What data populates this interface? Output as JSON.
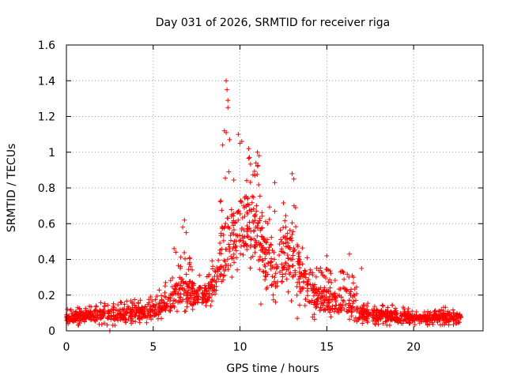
{
  "chart_data": {
    "type": "scatter",
    "title": "Day 031 of 2026, SRMTID for receiver riga",
    "xlabel": "GPS time / hours",
    "ylabel": "SRMTID / TECUs",
    "xlim": [
      0,
      24
    ],
    "ylim": [
      0,
      1.6
    ],
    "xticks": [
      0,
      5,
      10,
      15,
      20
    ],
    "xtick_labels": [
      "0",
      "5",
      "10",
      "15",
      "20"
    ],
    "yticks": [
      0,
      0.2,
      0.4,
      0.6,
      0.8,
      1,
      1.2,
      1.4,
      1.6
    ],
    "ytick_labels": [
      "0",
      "0.2",
      "0.4",
      "0.6",
      "0.8",
      "1",
      "1.2",
      "1.4",
      "1.6"
    ],
    "grid": true,
    "marker": "+",
    "marker_color": "#ff0000",
    "x_range_data": [
      0,
      22.8
    ],
    "series": [
      {
        "name": "SRMTID",
        "envelope": {
          "x": [
            0,
            1,
            2,
            3,
            4,
            5,
            6,
            6.5,
            7,
            7.5,
            8,
            8.5,
            9,
            9.5,
            10,
            10.5,
            11,
            11.5,
            12,
            12.5,
            13,
            13.5,
            14,
            14.5,
            15,
            15.5,
            16,
            16.5,
            17,
            18,
            19,
            20,
            21,
            22,
            22.8
          ],
          "low": [
            0.03,
            0.03,
            0.03,
            0.03,
            0.03,
            0.05,
            0.08,
            0.1,
            0.1,
            0.1,
            0.12,
            0.15,
            0.2,
            0.25,
            0.3,
            0.35,
            0.3,
            0.22,
            0.15,
            0.15,
            0.15,
            0.12,
            0.08,
            0.05,
            0.05,
            0.05,
            0.04,
            0.04,
            0.04,
            0.03,
            0.03,
            0.03,
            0.03,
            0.03,
            0.03
          ],
          "high": [
            0.12,
            0.14,
            0.16,
            0.17,
            0.18,
            0.2,
            0.3,
            0.42,
            0.45,
            0.32,
            0.3,
            0.42,
            0.95,
            0.9,
            1.02,
            1.0,
            0.95,
            0.72,
            0.68,
            0.75,
            0.85,
            0.55,
            0.38,
            0.35,
            0.38,
            0.3,
            0.38,
            0.32,
            0.18,
            0.16,
            0.14,
            0.12,
            0.12,
            0.14,
            0.12
          ],
          "center": [
            0.07,
            0.08,
            0.09,
            0.09,
            0.1,
            0.11,
            0.16,
            0.22,
            0.22,
            0.2,
            0.2,
            0.25,
            0.45,
            0.5,
            0.6,
            0.62,
            0.55,
            0.4,
            0.35,
            0.4,
            0.45,
            0.3,
            0.22,
            0.18,
            0.18,
            0.16,
            0.17,
            0.15,
            0.1,
            0.09,
            0.08,
            0.07,
            0.07,
            0.08,
            0.07
          ]
        },
        "outliers": [
          {
            "x": 9.2,
            "y": 1.4
          },
          {
            "x": 9.25,
            "y": 1.35
          },
          {
            "x": 9.3,
            "y": 1.29
          },
          {
            "x": 9.3,
            "y": 1.25
          },
          {
            "x": 9.1,
            "y": 1.12
          },
          {
            "x": 9.2,
            "y": 1.11
          },
          {
            "x": 9.4,
            "y": 1.07
          },
          {
            "x": 9.0,
            "y": 1.04
          },
          {
            "x": 9.9,
            "y": 1.1
          },
          {
            "x": 10.0,
            "y": 1.05
          },
          {
            "x": 10.1,
            "y": 1.06
          },
          {
            "x": 10.5,
            "y": 1.02
          },
          {
            "x": 11.0,
            "y": 1.0
          },
          {
            "x": 11.1,
            "y": 0.98
          },
          {
            "x": 13.0,
            "y": 0.88
          },
          {
            "x": 13.1,
            "y": 0.85
          },
          {
            "x": 12.0,
            "y": 0.83
          },
          {
            "x": 6.8,
            "y": 0.62
          },
          {
            "x": 6.7,
            "y": 0.58
          },
          {
            "x": 6.9,
            "y": 0.55
          },
          {
            "x": 6.2,
            "y": 0.46
          },
          {
            "x": 6.3,
            "y": 0.44
          },
          {
            "x": 15.0,
            "y": 0.42
          },
          {
            "x": 16.3,
            "y": 0.43
          },
          {
            "x": 17.0,
            "y": 0.35
          },
          {
            "x": 2.5,
            "y": 0.0
          },
          {
            "x": 13.3,
            "y": 0.07
          },
          {
            "x": 11.2,
            "y": 0.15
          }
        ]
      }
    ]
  }
}
